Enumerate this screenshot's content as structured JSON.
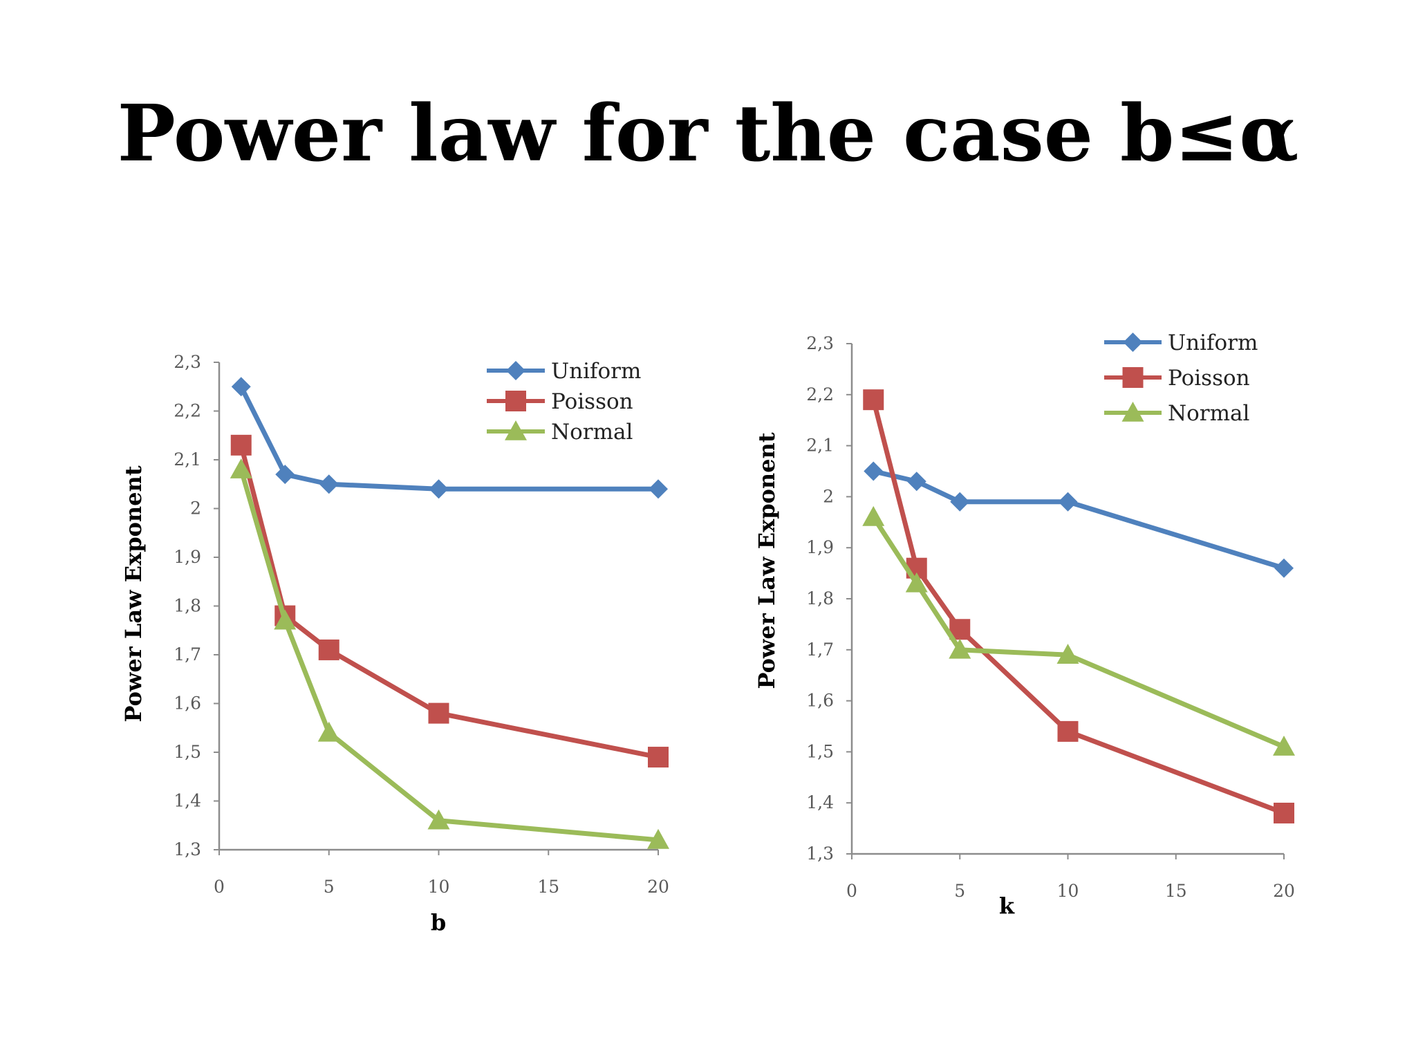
{
  "slide": {
    "title": "Power law for the case b≤α"
  },
  "chart_data": [
    {
      "type": "line",
      "xlabel": "b",
      "ylabel": "Power Law Exponent",
      "xlim": [
        0,
        20
      ],
      "ylim": [
        1.3,
        2.3
      ],
      "x_ticks": [
        "0",
        "5",
        "10",
        "15",
        "20"
      ],
      "y_ticks": [
        "1,3",
        "1,4",
        "1,5",
        "1,6",
        "1,7",
        "1,8",
        "1,9",
        "2",
        "2,1",
        "2,2",
        "2,3"
      ],
      "legend_position": "top-right",
      "grid": false,
      "x": [
        1,
        3,
        5,
        10,
        20
      ],
      "series": [
        {
          "name": "Uniform",
          "color": "#4f81bd",
          "marker": "diamond",
          "values": [
            2.25,
            2.07,
            2.05,
            2.04,
            2.04
          ]
        },
        {
          "name": "Poisson",
          "color": "#c0504d",
          "marker": "square",
          "values": [
            2.13,
            1.78,
            1.71,
            1.58,
            1.49
          ]
        },
        {
          "name": "Normal",
          "color": "#9bbb59",
          "marker": "triangle",
          "values": [
            2.08,
            1.77,
            1.54,
            1.36,
            1.32
          ]
        }
      ]
    },
    {
      "type": "line",
      "xlabel": "k",
      "ylabel": "Power Law Exponent",
      "xlim": [
        0,
        20
      ],
      "ylim": [
        1.3,
        2.3
      ],
      "x_ticks": [
        "0",
        "5",
        "10",
        "15",
        "20"
      ],
      "y_ticks": [
        "1,3",
        "1,4",
        "1,5",
        "1,6",
        "1,7",
        "1,8",
        "1,9",
        "2",
        "2,1",
        "2,2",
        "2,3"
      ],
      "legend_position": "top-right",
      "grid": false,
      "x": [
        1,
        3,
        5,
        10,
        20
      ],
      "series": [
        {
          "name": "Uniform",
          "color": "#4f81bd",
          "marker": "diamond",
          "values": [
            2.05,
            2.03,
            1.99,
            1.99,
            1.86
          ]
        },
        {
          "name": "Poisson",
          "color": "#c0504d",
          "marker": "square",
          "values": [
            2.19,
            1.86,
            1.74,
            1.54,
            1.38
          ]
        },
        {
          "name": "Normal",
          "color": "#9bbb59",
          "marker": "triangle",
          "values": [
            1.96,
            1.83,
            1.7,
            1.69,
            1.51
          ]
        }
      ]
    }
  ]
}
